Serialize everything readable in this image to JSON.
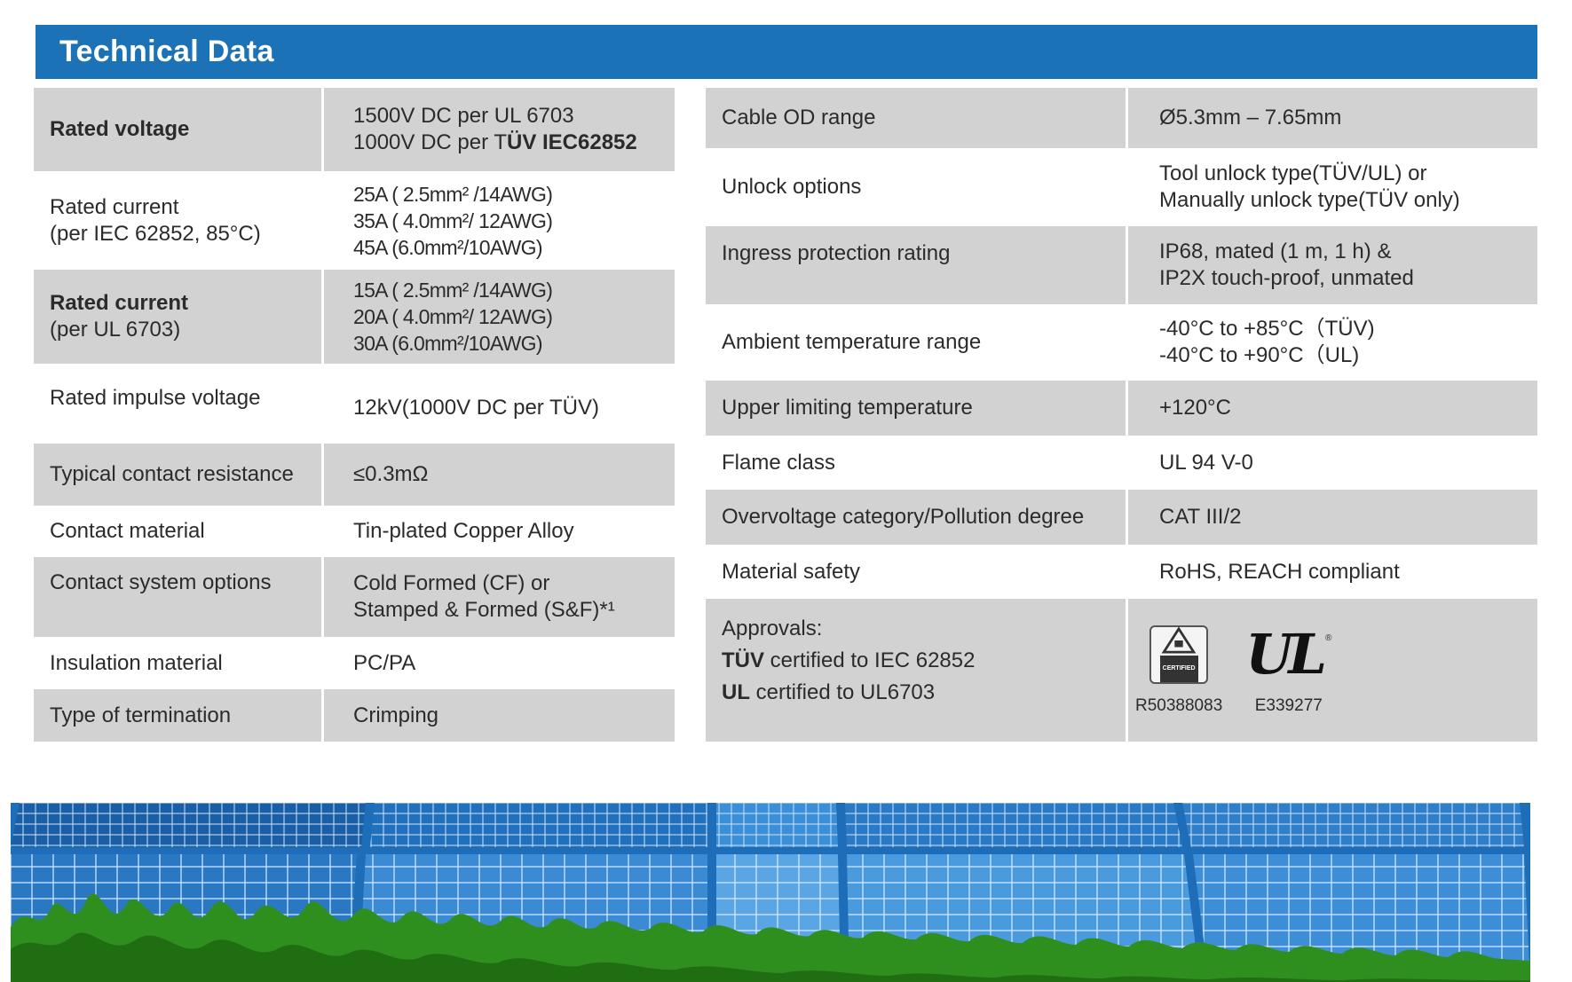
{
  "header": {
    "title": "Technical Data"
  },
  "left_table": [
    {
      "key_bold": "Rated voltage",
      "values": [
        {
          "plain": "1500V DC per UL 6703"
        },
        {
          "plain": "1000V DC per T",
          "bold": "ÜV IEC62852"
        }
      ]
    },
    {
      "key_bold": "",
      "key_lines": [
        "Rated current",
        "(per IEC 62852, 85°C)"
      ],
      "values": [
        {
          "plain": "25A ( 2.5mm² /14AWG)"
        },
        {
          "plain": "35A ( 4.0mm²/ 12AWG)"
        },
        {
          "plain": "45A (6.0mm²/10AWG)"
        }
      ]
    },
    {
      "key_bold": "Rated current",
      "key_lines": [
        "(per UL 6703)"
      ],
      "values": [
        {
          "plain": "15A ( 2.5mm² /14AWG)"
        },
        {
          "plain": "20A ( 4.0mm²/ 12AWG)"
        },
        {
          "plain": "30A (6.0mm²/10AWG)"
        }
      ]
    },
    {
      "key": "Rated impulse voltage",
      "values": [
        {
          "plain": "12kV(1000V DC per TÜV)"
        }
      ]
    },
    {
      "key": "Typical contact resistance",
      "values": [
        {
          "plain": "≤0.3mΩ"
        }
      ]
    },
    {
      "key": "Contact material",
      "values": [
        {
          "plain": "Tin-plated Copper Alloy"
        }
      ]
    },
    {
      "key": "Contact system options",
      "values": [
        {
          "plain": "Cold Formed (CF) or"
        },
        {
          "plain": "Stamped & Formed (S&F)*¹"
        }
      ]
    },
    {
      "key": "Insulation material",
      "values": [
        {
          "plain": "PC/PA"
        }
      ]
    },
    {
      "key": "Type of termination",
      "values": [
        {
          "plain": "Crimping"
        }
      ]
    }
  ],
  "right_table": [
    {
      "key": "Cable OD range",
      "values": [
        "Ø5.3mm – 7.65mm"
      ]
    },
    {
      "key": "Unlock options",
      "values": [
        "Tool unlock  type(TÜV/UL) or",
        "Manually unlock type(TÜV only)"
      ]
    },
    {
      "key": "Ingress protection rating",
      "values": [
        "IP68, mated (1 m, 1 h) &",
        "IP2X touch-proof, unmated"
      ]
    },
    {
      "key": "Ambient temperature range",
      "values": [
        "-40°C to +85°C（TÜV)",
        "-40°C to +90°C（UL)"
      ]
    },
    {
      "key": "Upper limiting temperature",
      "values": [
        "+120°C"
      ]
    },
    {
      "key": "Flame class",
      "values": [
        "UL 94 V-0"
      ]
    },
    {
      "key": "Overvoltage category/Pollution degree",
      "values": [
        "CAT III/2"
      ]
    },
    {
      "key": "Material safety",
      "values": [
        "RoHS, REACH compliant"
      ]
    }
  ],
  "approvals": {
    "label": "Approvals:",
    "line1_bold": "TÜV",
    "line1_rest": " certified to IEC 62852",
    "line2_bold": "UL",
    "line2_rest": " certified to UL6703",
    "tuv_cert": "R50388083",
    "ul_cert": "E339277",
    "tuv_logo_text": "CERTIFIED",
    "ul_logo_text": "UL"
  },
  "colors": {
    "header_blue": "#1c72b6",
    "row_gray": "#d2d2d2"
  }
}
